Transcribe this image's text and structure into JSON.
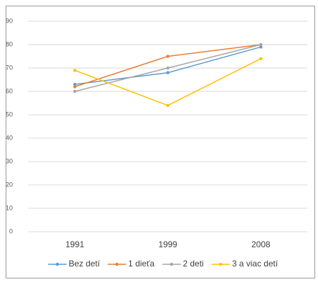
{
  "chart_data": {
    "type": "line",
    "categories": [
      "1991",
      "1999",
      "2008"
    ],
    "series": [
      {
        "name": "Bez detí",
        "color": "#5b9bd5",
        "values": [
          63,
          68,
          79
        ]
      },
      {
        "name": "1 dieťa",
        "color": "#ed7d31",
        "values": [
          62,
          75,
          80
        ]
      },
      {
        "name": "2 deti",
        "color": "#a5a5a5",
        "values": [
          60,
          70,
          80
        ]
      },
      {
        "name": "3 a viac detí",
        "color": "#ffc000",
        "values": [
          69,
          54,
          74
        ]
      }
    ],
    "ylim": [
      0,
      90
    ],
    "yticks": [
      0,
      10,
      20,
      30,
      40,
      50,
      60,
      70,
      80,
      90
    ],
    "grid": true
  }
}
